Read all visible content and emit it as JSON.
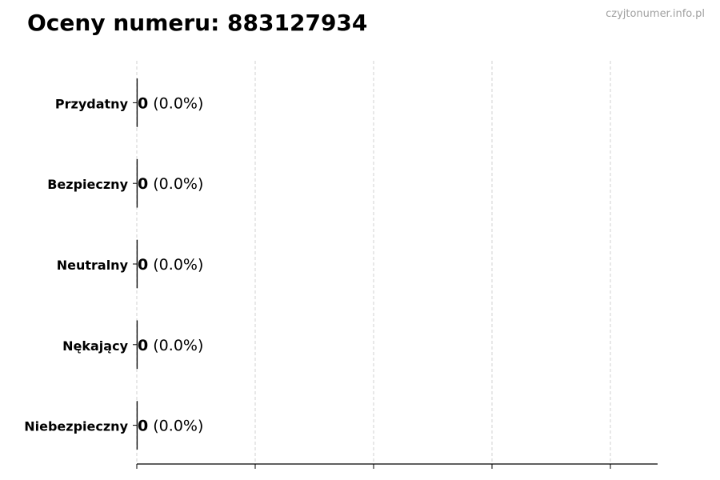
{
  "title": "Oceny numeru: 883127934",
  "watermark": "czyjtonumer.info.pl",
  "chart_data": {
    "type": "bar",
    "orientation": "horizontal",
    "title": "Oceny numeru: 883127934",
    "categories": [
      "Przydatny",
      "Bezpieczny",
      "Neutralny",
      "Nękający",
      "Niebezpieczny"
    ],
    "values": [
      0,
      0,
      0,
      0,
      0
    ],
    "percents": [
      "0.0%",
      "0.0%",
      "0.0%",
      "0.0%",
      "0.0%"
    ],
    "data_labels": [
      "0 (0.0%)",
      "0 (0.0%)",
      "0 (0.0%)",
      "0 (0.0%)",
      "0 (0.0%)"
    ],
    "xlabel": "",
    "ylabel": "",
    "grid": "x, dashed",
    "x_tick_labels_shown": false,
    "colors": {
      "bar_edge": "#000000",
      "grid": "#d0d0d0",
      "axis": "#000000"
    }
  }
}
